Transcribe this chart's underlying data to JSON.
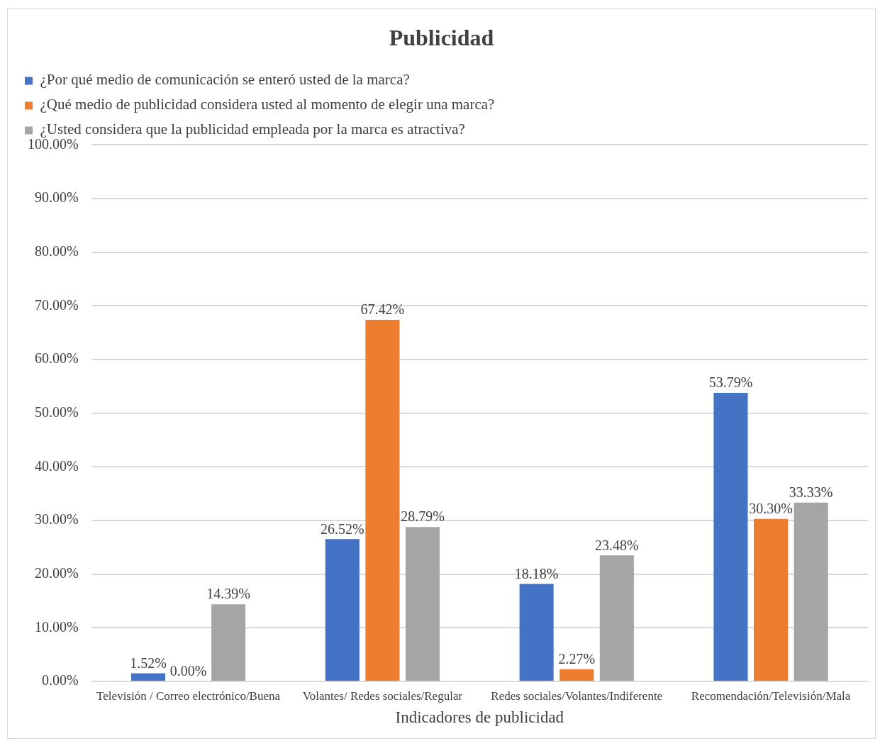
{
  "chart_data": {
    "type": "bar",
    "title": "Publicidad",
    "xlabel": "Indicadores de publicidad",
    "categories": [
      "Televisión / Correo electrónico/Buena",
      "Volantes/ Redes sociales/Regular",
      "Redes sociales/Volantes/Indiferente",
      "Recomendación/Televisión/Mala"
    ],
    "series": [
      {
        "name": "¿Por qué medio de comunicación se enteró usted de la marca?",
        "color": "#4472c4",
        "values": [
          1.52,
          26.52,
          18.18,
          53.79
        ],
        "value_labels": [
          "1.52%",
          "26.52%",
          "18.18%",
          "53.79%"
        ]
      },
      {
        "name": "¿Qué medio de publicidad considera usted al momento de elegir una marca?",
        "color": "#ed7d31",
        "values": [
          0,
          67.42,
          2.27,
          30.3
        ],
        "value_labels": [
          "0.00%",
          "67.42%",
          "2.27%",
          "30.30%"
        ]
      },
      {
        "name": "¿Usted considera que la publicidad empleada por la marca es atractiva?",
        "color": "#a5a5a5",
        "values": [
          14.39,
          28.79,
          23.48,
          33.33
        ],
        "value_labels": [
          "14.39%",
          "28.79%",
          "23.48%",
          "33.33%"
        ]
      }
    ],
    "ylim": [
      0,
      100
    ],
    "yticks": [
      {
        "value": 0,
        "label": "0.00%"
      },
      {
        "value": 10,
        "label": "10.00%"
      },
      {
        "value": 20,
        "label": "20.00%"
      },
      {
        "value": 30,
        "label": "30.00%"
      },
      {
        "value": 40,
        "label": "40.00%"
      },
      {
        "value": 50,
        "label": "50.00%"
      },
      {
        "value": 60,
        "label": "60.00%"
      },
      {
        "value": 70,
        "label": "70.00%"
      },
      {
        "value": 80,
        "label": "80.00%"
      },
      {
        "value": 90,
        "label": "90.00%"
      },
      {
        "value": 100,
        "label": "100.00%"
      }
    ],
    "grid": "y",
    "legend": "top"
  }
}
